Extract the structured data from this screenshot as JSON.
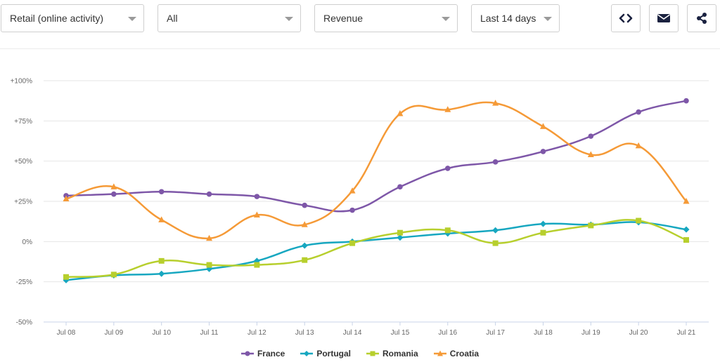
{
  "toolbar": {
    "dataset_select": "Retail (online activity)",
    "filter_select": "All",
    "metric_select": "Revenue",
    "period_select": "Last 14 days"
  },
  "icons": {
    "embed": "code-icon",
    "email": "envelope-icon",
    "share": "share-icon"
  },
  "chart_data": {
    "type": "line",
    "categories": [
      "Jul 08",
      "Jul 09",
      "Jul 10",
      "Jul 11",
      "Jul 12",
      "Jul 13",
      "Jul 14",
      "Jul 15",
      "Jul 16",
      "Jul 17",
      "Jul 18",
      "Jul 19",
      "Jul 20",
      "Jul 21"
    ],
    "y_ticks": [
      "+100%",
      "+75%",
      "+50%",
      "+25%",
      "0%",
      "-25%",
      "-50%"
    ],
    "ylim": [
      -50,
      100
    ],
    "grid": true,
    "legend_position": "bottom",
    "series": [
      {
        "name": "France",
        "color": "#7e57a8",
        "marker": "circle",
        "values": [
          28.5,
          29.5,
          31,
          29.5,
          28,
          22.5,
          19.5,
          34,
          45.5,
          49.5,
          56,
          65.5,
          80.5,
          87.5
        ]
      },
      {
        "name": "Portugal",
        "color": "#17a7c0",
        "marker": "diamond",
        "values": [
          -24,
          -21,
          -20,
          -17,
          -12,
          -2.5,
          0,
          2.5,
          5,
          7,
          11,
          10.5,
          12,
          7.5
        ]
      },
      {
        "name": "Romania",
        "color": "#b7cf2d",
        "marker": "square",
        "values": [
          -22,
          -20.5,
          -12,
          -14.5,
          -14.5,
          -11.5,
          -1,
          5.5,
          7,
          -1,
          5.5,
          10,
          13,
          1
        ]
      },
      {
        "name": "Croatia",
        "color": "#f59a37",
        "marker": "triangle",
        "values": [
          26.5,
          34,
          13.5,
          2,
          16.5,
          10.5,
          31.5,
          79.5,
          82,
          86,
          71.5,
          54,
          59.5,
          25
        ]
      }
    ]
  }
}
